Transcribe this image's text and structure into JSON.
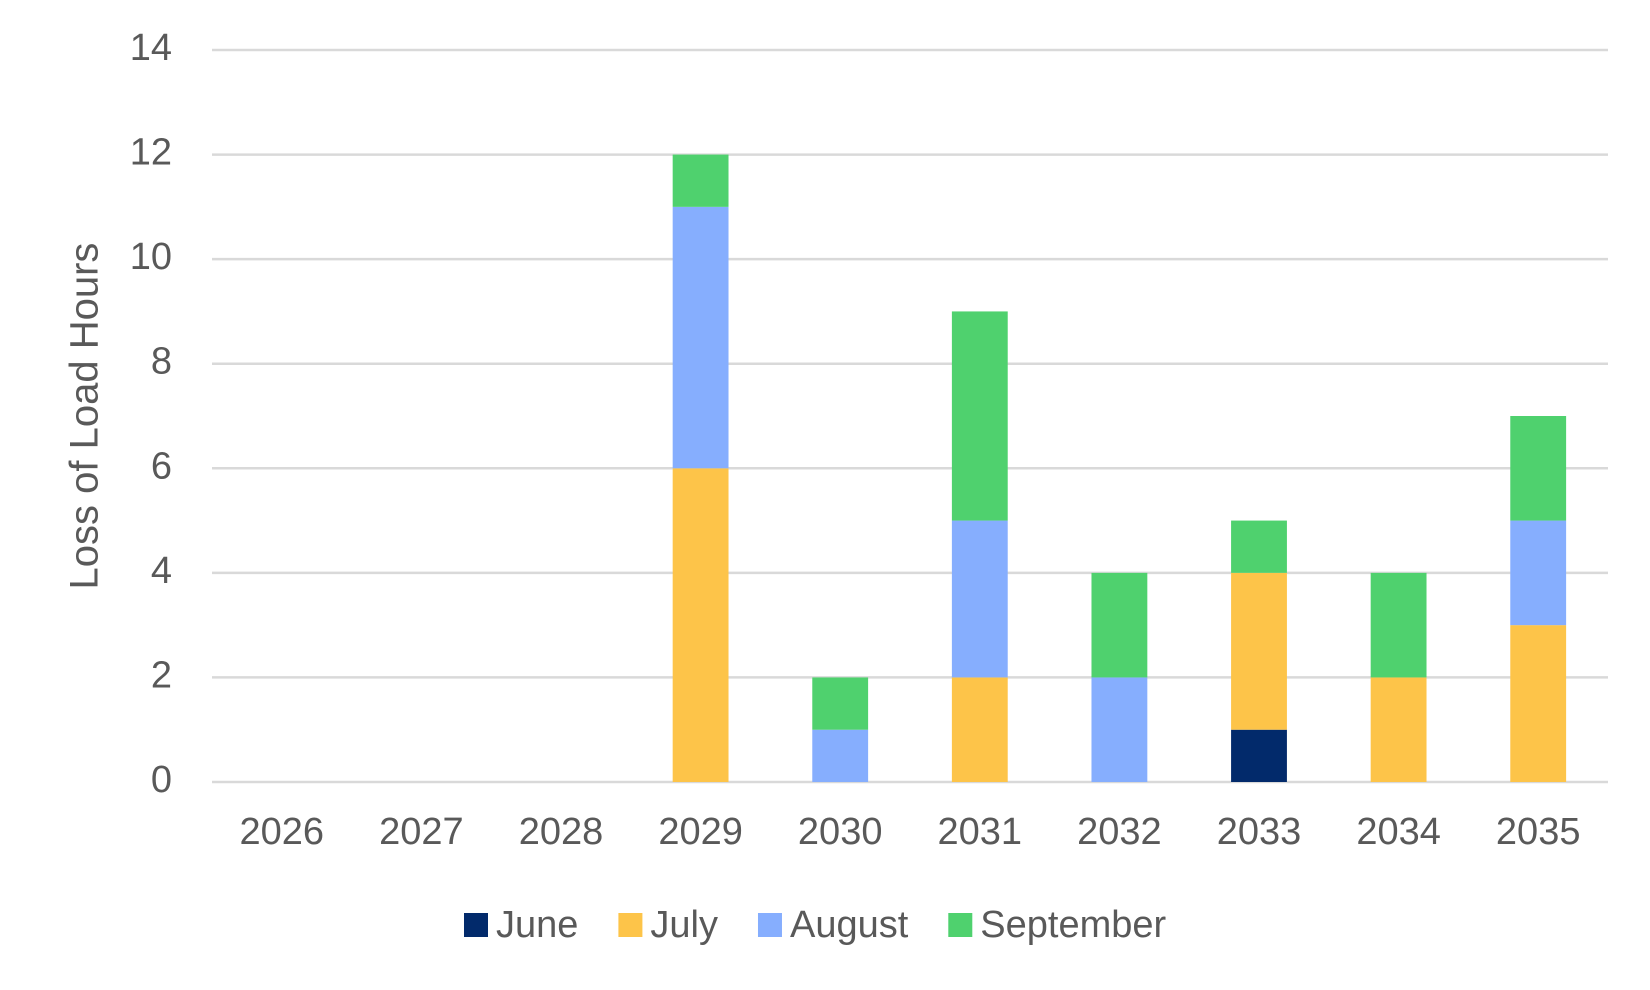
{
  "chart_data": {
    "type": "bar",
    "stacked": true,
    "y_label": "Loss of Load Hours",
    "categories": [
      "2026",
      "2027",
      "2028",
      "2029",
      "2030",
      "2031",
      "2032",
      "2033",
      "2034",
      "2035"
    ],
    "series": [
      {
        "name": "June",
        "color": "#022a6b",
        "values": [
          0,
          0,
          0,
          0,
          0,
          0,
          0,
          1,
          0,
          0
        ]
      },
      {
        "name": "July",
        "color": "#fdc449",
        "values": [
          0,
          0,
          0,
          6,
          0,
          2,
          0,
          3,
          2,
          3
        ]
      },
      {
        "name": "August",
        "color": "#86aefe",
        "values": [
          0,
          0,
          0,
          5,
          1,
          3,
          2,
          0,
          0,
          2
        ]
      },
      {
        "name": "September",
        "color": "#4fd16e",
        "values": [
          0,
          0,
          0,
          1,
          1,
          4,
          2,
          1,
          2,
          2
        ]
      }
    ],
    "ylim": [
      0,
      14
    ],
    "yticks": [
      0,
      2,
      4,
      6,
      8,
      10,
      12,
      14
    ],
    "grid": true,
    "legend": "bottom"
  }
}
